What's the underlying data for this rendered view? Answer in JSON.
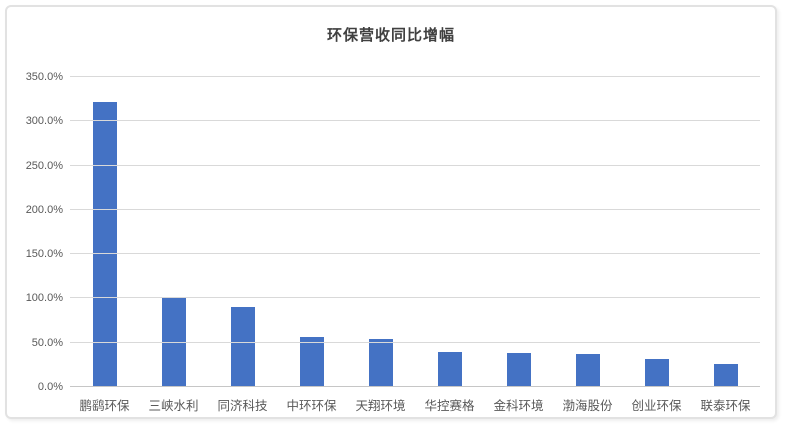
{
  "chart_data": {
    "type": "bar",
    "title": "环保营收同比增幅",
    "categories": [
      "鹏鹞环保",
      "三峡水利",
      "同济科技",
      "中环环保",
      "天翔环境",
      "华控赛格",
      "金科环境",
      "渤海股份",
      "创业环保",
      "联泰环保"
    ],
    "values": [
      322,
      100,
      90,
      57,
      54,
      40,
      38,
      37,
      32,
      26
    ],
    "unit": "%",
    "xlabel": "",
    "ylabel": "",
    "ylim": [
      0,
      350
    ],
    "yticks": [
      {
        "value": 0,
        "label": "0.0%"
      },
      {
        "value": 50,
        "label": "50.0%"
      },
      {
        "value": 100,
        "label": "100.0%"
      },
      {
        "value": 150,
        "label": "150.0%"
      },
      {
        "value": 200,
        "label": "200.0%"
      },
      {
        "value": 250,
        "label": "250.0%"
      },
      {
        "value": 300,
        "label": "300.0%"
      },
      {
        "value": 350,
        "label": "350.0%"
      }
    ],
    "grid": true,
    "legend": "none",
    "colors": {
      "bar": "#4472c4",
      "gridline": "#d9d9d9",
      "axis_line": "#c6c6c6",
      "tick_text": "#595959",
      "title_text": "#404040",
      "panel_border": "#e2e2e2",
      "background": "#ffffff"
    }
  }
}
